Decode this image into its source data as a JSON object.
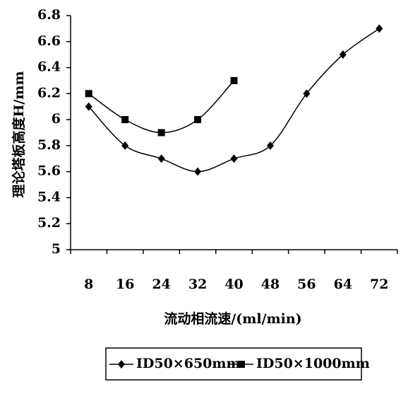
{
  "chart_data": {
    "type": "line",
    "x_label": "流动相流速/(ml/min)",
    "y_label": "理论塔板高度H/mm",
    "categories": [
      8,
      16,
      24,
      32,
      40,
      48,
      56,
      64,
      72
    ],
    "series": [
      {
        "name": "ID50×650mm",
        "color": "#000000",
        "marker": "diamond",
        "values": [
          6.1,
          5.8,
          5.7,
          5.6,
          5.7,
          5.8,
          6.2,
          6.5,
          6.7
        ]
      },
      {
        "name": "ID50×1000mm",
        "color": "#000000",
        "marker": "square",
        "values": [
          6.2,
          6.0,
          5.9,
          6.0,
          6.3,
          null,
          null,
          null,
          null
        ]
      }
    ],
    "ylim": [
      5,
      6.8
    ],
    "yticks": [
      5,
      5.2,
      5.4,
      5.6,
      5.8,
      6,
      6.2,
      6.4,
      6.6,
      6.8
    ],
    "grid": false,
    "legend": "bottom"
  }
}
